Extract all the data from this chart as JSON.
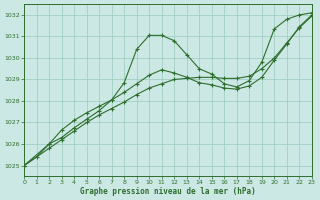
{
  "title": "Graphe pression niveau de la mer (hPa)",
  "bg_color": "#cce8e4",
  "grid_color": "#99ccbb",
  "line_color": "#2d6e2d",
  "xlim": [
    0,
    23
  ],
  "ylim": [
    1024.5,
    1032.5
  ],
  "yticks": [
    1025,
    1026,
    1027,
    1028,
    1029,
    1030,
    1031,
    1032
  ],
  "xticks": [
    0,
    1,
    2,
    3,
    4,
    5,
    6,
    7,
    8,
    9,
    10,
    11,
    12,
    13,
    14,
    15,
    16,
    17,
    18,
    19,
    20,
    21,
    22,
    23
  ],
  "s1x": [
    0,
    1,
    2,
    3,
    4,
    5,
    6,
    7,
    8,
    9,
    10,
    11,
    12,
    13,
    14,
    15,
    16,
    17,
    18,
    19,
    20,
    21,
    22,
    23
  ],
  "s1y": [
    1025.0,
    1025.4,
    1026.0,
    1026.3,
    1026.75,
    1027.15,
    1027.55,
    1028.05,
    1028.85,
    1030.4,
    1031.05,
    1031.05,
    1030.8,
    1030.15,
    1029.5,
    1029.25,
    1028.8,
    1028.65,
    1028.95,
    1029.8,
    1031.35,
    1031.8,
    1032.0,
    1032.1
  ],
  "s2x": [
    0,
    2,
    3,
    4,
    5,
    6,
    7,
    8,
    9,
    10,
    11,
    12,
    13,
    14,
    15,
    16,
    17,
    18,
    19,
    20,
    21,
    22,
    23
  ],
  "s2y": [
    1025.0,
    1026.0,
    1026.65,
    1027.1,
    1027.45,
    1027.75,
    1028.05,
    1028.4,
    1028.8,
    1029.2,
    1029.45,
    1029.3,
    1029.1,
    1028.85,
    1028.75,
    1028.6,
    1028.55,
    1028.7,
    1029.1,
    1029.9,
    1030.65,
    1031.45,
    1032.0
  ],
  "s3x": [
    0,
    2,
    3,
    4,
    5,
    6,
    7,
    8,
    9,
    10,
    11,
    12,
    13,
    14,
    15,
    16,
    17,
    18,
    19,
    20,
    21,
    22,
    23
  ],
  "s3y": [
    1025.0,
    1025.8,
    1026.2,
    1026.6,
    1027.0,
    1027.35,
    1027.65,
    1027.95,
    1028.3,
    1028.6,
    1028.8,
    1029.0,
    1029.05,
    1029.1,
    1029.1,
    1029.05,
    1029.05,
    1029.15,
    1029.5,
    1030.0,
    1030.7,
    1031.4,
    1031.95
  ]
}
